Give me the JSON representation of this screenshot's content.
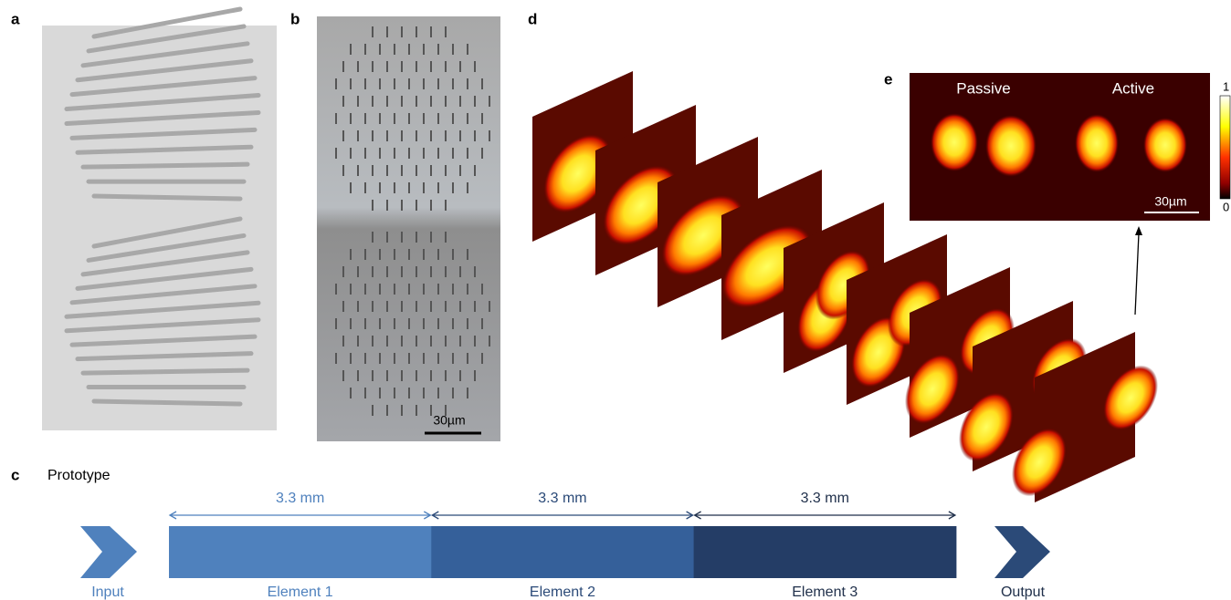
{
  "panels": {
    "a": {
      "label": "a"
    },
    "b": {
      "label": "b",
      "scale_bar": "30µm"
    },
    "c": {
      "label": "c",
      "title": "Prototype",
      "segments": [
        {
          "length": "3.3 mm",
          "name": "Element 1"
        },
        {
          "length": "3.3 mm",
          "name": "Element 2"
        },
        {
          "length": "3.3 mm",
          "name": "Element 3"
        }
      ],
      "input": "Input",
      "output": "Output"
    },
    "d": {
      "label": "d"
    },
    "e": {
      "label": "e",
      "titles": [
        "Passive",
        "Active"
      ],
      "scale_bar": "30µm",
      "colorbar": {
        "max": 1,
        "min": 0
      }
    }
  }
}
